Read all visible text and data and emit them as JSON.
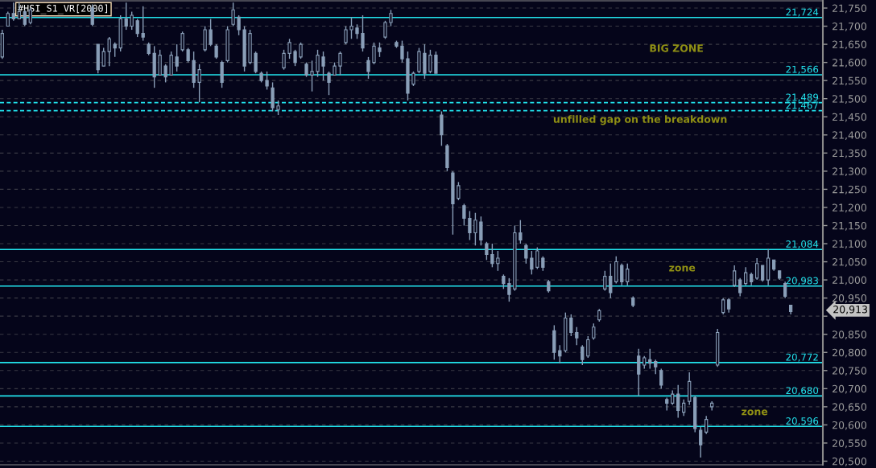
{
  "chart_data": {
    "type": "candlestick",
    "title": "#HSI_S1_VR[2000]",
    "categories": [
      null,
      null,
      null,
      null,
      null,
      null,
      null,
      null,
      null,
      null,
      null,
      null,
      null,
      null,
      null,
      null,
      null,
      null,
      null,
      null,
      null,
      null,
      null,
      null,
      null,
      null,
      null,
      null,
      null,
      null,
      null,
      null,
      null,
      null,
      null,
      null,
      null,
      null,
      null,
      null,
      null,
      null,
      null,
      null,
      null,
      null,
      null,
      null,
      null,
      null,
      null,
      null,
      null,
      null,
      null,
      null,
      null,
      null,
      null,
      null,
      null,
      null,
      null,
      null,
      null,
      null,
      null,
      null,
      null,
      null,
      null,
      null,
      null,
      null,
      null,
      null,
      null,
      null,
      null,
      null,
      null,
      null,
      null,
      null,
      null,
      null,
      null,
      null,
      null,
      null,
      null,
      null,
      null,
      null,
      null,
      null,
      null,
      null,
      null,
      null,
      null,
      null,
      null,
      null,
      null,
      null,
      null,
      null,
      null,
      null,
      null,
      null,
      null,
      null,
      null,
      null,
      null,
      null,
      null,
      null,
      null,
      null,
      null,
      null,
      null,
      null,
      null,
      null,
      null,
      null,
      null,
      null,
      null,
      null,
      null,
      null,
      null,
      null,
      null,
      null,
      null
    ],
    "ohlc": [
      [
        21615,
        21690,
        21610,
        21680
      ],
      [
        21700,
        21740,
        21700,
        21735
      ],
      [
        21735,
        21765,
        21715,
        21720
      ],
      [
        21720,
        21765,
        21720,
        21740
      ],
      [
        21740,
        21745,
        21700,
        21705
      ],
      [
        21710,
        21750,
        21705,
        21745
      ],
      null,
      null,
      null,
      null,
      null,
      null,
      null,
      null,
      null,
      null,
      [
        21750,
        21760,
        21700,
        21705
      ],
      [
        21650,
        21650,
        21570,
        21580
      ],
      [
        21590,
        21640,
        21590,
        21630
      ],
      [
        21630,
        21670,
        21590,
        21665
      ],
      [
        21650,
        21655,
        21615,
        21640
      ],
      [
        21640,
        21730,
        21630,
        21720
      ],
      [
        21720,
        21765,
        21690,
        21700
      ],
      [
        21700,
        21740,
        21690,
        21730
      ],
      [
        21715,
        21720,
        21670,
        21680
      ],
      [
        21680,
        21755,
        21660,
        21670
      ],
      [
        21650,
        21655,
        21620,
        21625
      ],
      [
        21625,
        21645,
        21530,
        21560
      ],
      [
        21565,
        21635,
        21565,
        21620
      ],
      [
        21590,
        21595,
        21545,
        21560
      ],
      [
        21565,
        21630,
        21565,
        21620
      ],
      [
        21615,
        21650,
        21575,
        21590
      ],
      [
        21635,
        21685,
        21630,
        21680
      ],
      [
        21635,
        21640,
        21600,
        21605
      ],
      [
        21605,
        21630,
        21530,
        21545
      ],
      [
        21545,
        21595,
        21490,
        21580
      ],
      [
        21635,
        21700,
        21630,
        21690
      ],
      [
        21690,
        21720,
        21645,
        21650
      ],
      [
        21645,
        21650,
        21610,
        21615
      ],
      [
        21600,
        21605,
        21530,
        21545
      ],
      [
        21605,
        21700,
        21600,
        21690
      ],
      [
        21705,
        21765,
        21700,
        21745
      ],
      [
        21725,
        21730,
        21675,
        21690
      ],
      [
        21690,
        21700,
        21575,
        21590
      ],
      [
        21600,
        21690,
        21595,
        21680
      ],
      [
        21625,
        21630,
        21570,
        21575
      ],
      [
        21570,
        21575,
        21545,
        21550
      ],
      [
        21550,
        21575,
        21525,
        21535
      ],
      [
        21530,
        21545,
        21465,
        21475
      ],
      [
        21470,
        21495,
        21455,
        21480
      ],
      [
        21585,
        21635,
        21580,
        21625
      ],
      [
        21625,
        21665,
        21610,
        21655
      ],
      [
        21630,
        21635,
        21590,
        21600
      ],
      [
        21615,
        21655,
        21610,
        21650
      ],
      [
        21595,
        21600,
        21560,
        21565
      ],
      [
        21565,
        21605,
        21520,
        21575
      ],
      [
        21575,
        21635,
        21560,
        21620
      ],
      [
        21615,
        21630,
        21550,
        21590
      ],
      [
        21570,
        21575,
        21510,
        21545
      ],
      [
        21565,
        21600,
        21565,
        21590
      ],
      [
        21590,
        21630,
        21565,
        21625
      ],
      [
        21655,
        21700,
        21650,
        21690
      ],
      [
        21690,
        21725,
        21665,
        21700
      ],
      [
        21695,
        21705,
        21665,
        21680
      ],
      [
        21680,
        21730,
        21630,
        21640
      ],
      [
        21605,
        21615,
        21555,
        21575
      ],
      [
        21600,
        21655,
        21595,
        21645
      ],
      [
        21640,
        21655,
        21615,
        21630
      ],
      [
        21670,
        21715,
        21665,
        21710
      ],
      [
        21710,
        21745,
        21700,
        21735
      ],
      [
        21655,
        21660,
        21640,
        21645
      ],
      [
        21645,
        21660,
        21600,
        21610
      ],
      [
        21610,
        21630,
        21495,
        21515
      ],
      [
        21540,
        21575,
        21535,
        21570
      ],
      [
        21575,
        21640,
        21570,
        21630
      ],
      [
        21625,
        21650,
        21555,
        21570
      ],
      [
        21575,
        21635,
        21570,
        21620
      ],
      [
        21620,
        21630,
        21570,
        21570
      ],
      [
        21455,
        21465,
        21370,
        21400
      ],
      [
        21370,
        21375,
        21300,
        21310
      ],
      [
        21295,
        21300,
        21125,
        21210
      ],
      [
        21225,
        21270,
        21220,
        21260
      ],
      [
        21205,
        21210,
        21150,
        21170
      ],
      [
        21170,
        21190,
        21110,
        21130
      ],
      [
        21130,
        21185,
        21095,
        21165
      ],
      [
        21160,
        21175,
        21095,
        21110
      ],
      [
        21100,
        21105,
        21055,
        21070
      ],
      [
        21070,
        21100,
        21035,
        21045
      ],
      [
        21045,
        21080,
        21025,
        21060
      ],
      [
        21010,
        21015,
        20975,
        20990
      ],
      [
        20990,
        21005,
        20940,
        20960
      ],
      [
        20975,
        21150,
        20970,
        21130
      ],
      [
        21130,
        21165,
        21100,
        21110
      ],
      [
        21095,
        21100,
        21045,
        21060
      ],
      [
        21060,
        21080,
        21015,
        21030
      ],
      [
        21035,
        21090,
        21030,
        21080
      ],
      [
        21060,
        21065,
        21025,
        21035
      ],
      [
        20995,
        21000,
        20965,
        20970
      ],
      [
        20860,
        20875,
        20780,
        20800
      ],
      [
        20805,
        20820,
        20770,
        20790
      ],
      [
        20805,
        20910,
        20800,
        20895
      ],
      [
        20895,
        20905,
        20845,
        20855
      ],
      [
        20855,
        20870,
        20820,
        20840
      ],
      [
        20815,
        20820,
        20765,
        20780
      ],
      [
        20790,
        20845,
        20785,
        20835
      ],
      [
        20840,
        20880,
        20835,
        20870
      ],
      [
        20890,
        20920,
        20885,
        20915
      ],
      [
        20975,
        21025,
        20970,
        21010
      ],
      [
        21010,
        21045,
        20950,
        20965
      ],
      [
        20995,
        21065,
        20990,
        21050
      ],
      [
        21040,
        21045,
        20985,
        20995
      ],
      [
        20995,
        21045,
        20985,
        21030
      ],
      [
        20950,
        20955,
        20925,
        20930
      ],
      [
        20790,
        20810,
        20680,
        20740
      ],
      [
        20765,
        20790,
        20755,
        20785
      ],
      [
        20780,
        20810,
        20755,
        20770
      ],
      [
        20775,
        20780,
        20740,
        20760
      ],
      [
        20750,
        20755,
        20700,
        20710
      ],
      [
        20670,
        20675,
        20640,
        20660
      ],
      [
        20660,
        20695,
        20655,
        20685
      ],
      [
        20685,
        20710,
        20620,
        20640
      ],
      [
        20635,
        20670,
        20625,
        20660
      ],
      [
        20665,
        20745,
        20655,
        20720
      ],
      [
        20675,
        20680,
        20580,
        20590
      ],
      [
        20585,
        20595,
        20510,
        20545
      ],
      [
        20580,
        20625,
        20575,
        20615
      ],
      [
        20650,
        20665,
        20640,
        20660
      ],
      [
        20765,
        20865,
        20760,
        20855
      ],
      [
        20910,
        20950,
        20905,
        20945
      ],
      [
        20945,
        20950,
        20910,
        20920
      ],
      [
        20985,
        21040,
        20980,
        21025
      ],
      [
        21000,
        21005,
        20955,
        20965
      ],
      [
        20990,
        21035,
        20985,
        21020
      ],
      [
        21015,
        21020,
        20985,
        20995
      ],
      [
        21005,
        21060,
        21000,
        21045
      ],
      [
        21040,
        21040,
        20995,
        21000
      ],
      [
        21000,
        21085,
        20985,
        21060
      ],
      [
        21055,
        21055,
        21025,
        21030
      ],
      [
        21025,
        21025,
        21000,
        21005
      ],
      [
        20990,
        20995,
        20950,
        20955
      ],
      [
        20930,
        20930,
        20905,
        20913
      ]
    ],
    "color": "#8a9fb8",
    "ylim": [
      20490,
      21770
    ],
    "yticks": [
      {
        "value": 20500,
        "label": "20,500"
      },
      {
        "value": 20550,
        "label": "20,550"
      },
      {
        "value": 20600,
        "label": "20,600"
      },
      {
        "value": 20650,
        "label": "20,650"
      },
      {
        "value": 20700,
        "label": "20,700"
      },
      {
        "value": 20750,
        "label": "20,750"
      },
      {
        "value": 20800,
        "label": "20,800"
      },
      {
        "value": 20850,
        "label": "20,850"
      },
      {
        "value": 20900,
        "label": null
      },
      {
        "value": 20950,
        "label": "20,950"
      },
      {
        "value": 21000,
        "label": "21,000"
      },
      {
        "value": 21050,
        "label": "21,050"
      },
      {
        "value": 21100,
        "label": "21,100"
      },
      {
        "value": 21150,
        "label": "21,150"
      },
      {
        "value": 21200,
        "label": "21,200"
      },
      {
        "value": 21250,
        "label": "21,250"
      },
      {
        "value": 21300,
        "label": "21,300"
      },
      {
        "value": 21350,
        "label": "21,350"
      },
      {
        "value": 21400,
        "label": "21,400"
      },
      {
        "value": 21450,
        "label": "21,450"
      },
      {
        "value": 21500,
        "label": "21,500"
      },
      {
        "value": 21550,
        "label": "21,550"
      },
      {
        "value": 21600,
        "label": "21,600"
      },
      {
        "value": 21650,
        "label": "21,650"
      },
      {
        "value": 21700,
        "label": "21,700"
      },
      {
        "value": 21750,
        "label": "21,750"
      }
    ],
    "grid": "y",
    "tick_labels": "y",
    "ref_lines": [
      {
        "axis": "y",
        "value": 21724,
        "label": "21,724",
        "color": "#22e4ee",
        "line_style": "solid"
      },
      {
        "axis": "y",
        "value": 21566,
        "label": "21,566",
        "color": "#22e4ee",
        "line_style": "solid"
      },
      {
        "axis": "y",
        "value": 21489,
        "label": "21,489",
        "color": "#22e4ee",
        "line_style": "dashed"
      },
      {
        "axis": "y",
        "value": 21467,
        "label": "21,467",
        "color": "#22e4ee",
        "line_style": "dashed"
      },
      {
        "axis": "y",
        "value": 21084,
        "label": "21,084",
        "color": "#22e4ee",
        "line_style": "solid"
      },
      {
        "axis": "y",
        "value": 20983,
        "label": "20,983",
        "color": "#22e4ee",
        "line_style": "solid"
      },
      {
        "axis": "y",
        "value": 20772,
        "label": "20,772",
        "color": "#22e4ee",
        "line_style": "solid"
      },
      {
        "axis": "y",
        "value": 20680,
        "label": "20,680",
        "color": "#22e4ee",
        "line_style": "solid"
      },
      {
        "axis": "y",
        "value": 20596,
        "label": "20,596",
        "color": "#22e4ee",
        "line_style": "solid"
      }
    ],
    "annotations": [
      "BIG ZONE",
      "unfilled gap on the breakdown",
      "zone",
      "zone",
      "20,913"
    ]
  }
}
